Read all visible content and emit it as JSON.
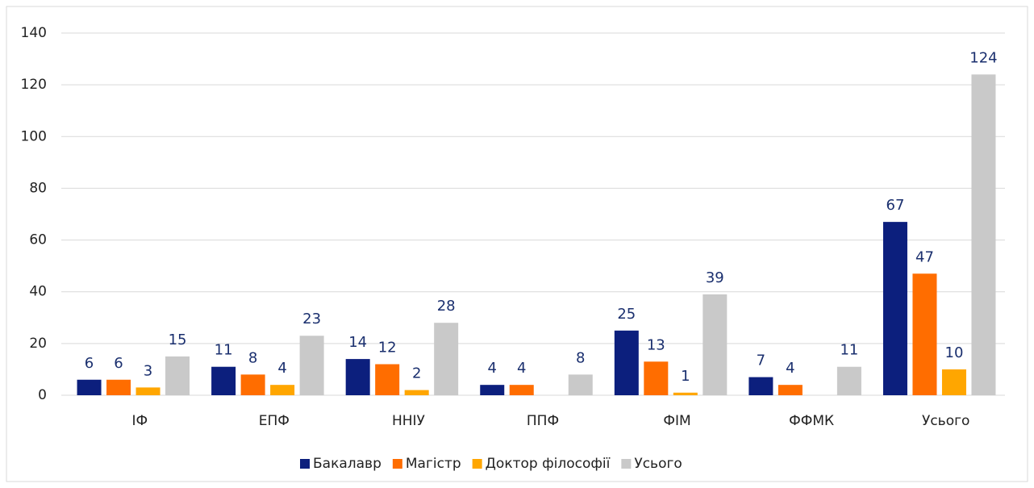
{
  "chart_data": {
    "type": "bar",
    "categories": [
      "ІФ",
      "ЕПФ",
      "ННІУ",
      "ППФ",
      "ФІМ",
      "ФФМК",
      "Усього"
    ],
    "series": [
      {
        "name": "Бакалавр",
        "color": "#0c1f7d",
        "values": [
          6,
          11,
          14,
          4,
          25,
          7,
          67
        ]
      },
      {
        "name": "Магістр",
        "color": "#ff6d00",
        "values": [
          6,
          8,
          12,
          4,
          13,
          4,
          47
        ]
      },
      {
        "name": "Доктор філософії",
        "color": "#ffa600",
        "values": [
          3,
          4,
          2,
          null,
          1,
          null,
          10
        ]
      },
      {
        "name": "Усього",
        "color": "#c9c9c9",
        "values": [
          15,
          23,
          28,
          8,
          39,
          11,
          124
        ]
      }
    ],
    "ylim": [
      0,
      140
    ],
    "yticks": [
      0,
      20,
      40,
      60,
      80,
      100,
      120,
      140
    ],
    "grid": true,
    "legend": "bottom"
  }
}
